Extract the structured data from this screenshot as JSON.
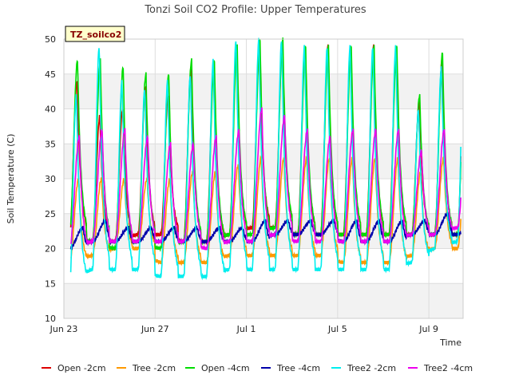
{
  "chart_data": {
    "type": "line",
    "title": "Tonzi Soil CO2 Profile: Upper Temperatures",
    "xlabel": "Time",
    "ylabel": "Soil Temperature (C)",
    "badge": "TZ_soilco2",
    "xlim": [
      0,
      17.5
    ],
    "ylim": [
      10,
      50
    ],
    "yticks": [
      10,
      15,
      20,
      25,
      30,
      35,
      40,
      45,
      50
    ],
    "xticks": [
      {
        "day": 0,
        "label": "Jun 23"
      },
      {
        "day": 4,
        "label": "Jun 27"
      },
      {
        "day": 8,
        "label": "Jul 1"
      },
      {
        "day": 12,
        "label": "Jul 5"
      },
      {
        "day": 16,
        "label": "Jul 9"
      }
    ],
    "x_range_days": [
      0.3,
      17.4
    ],
    "grid": true,
    "legend_position": "bottom",
    "series": [
      {
        "name": "Open -2cm",
        "color": "#dd0000",
        "peak_day": 0.58,
        "max": [
          44,
          39,
          40,
          43,
          42,
          46,
          47,
          49,
          49,
          49,
          49,
          49,
          49,
          49,
          49,
          41,
          47,
          48
        ],
        "min": [
          22,
          21,
          21,
          22,
          22,
          21,
          21,
          22,
          23,
          23,
          22,
          22,
          22,
          22,
          22,
          22,
          22,
          22
        ]
      },
      {
        "name": "Tree -2cm",
        "color": "#ff9900",
        "peak_day": 0.65,
        "max": [
          30,
          30,
          30,
          30,
          30,
          31,
          31,
          32,
          33,
          33,
          33,
          33,
          33,
          33,
          33,
          31,
          33,
          33
        ],
        "min": [
          18,
          19,
          20,
          20,
          18,
          18,
          18,
          19,
          19,
          19,
          19,
          19,
          18,
          18,
          18,
          19,
          20,
          20
        ]
      },
      {
        "name": "Open -4cm",
        "color": "#00dd00",
        "peak_day": 0.6,
        "max": [
          47,
          47,
          46,
          45,
          45,
          47,
          47,
          49,
          50,
          50,
          49,
          49,
          49,
          49,
          49,
          42,
          48,
          49
        ],
        "min": [
          22,
          21,
          20,
          21,
          20,
          21,
          21,
          22,
          22,
          23,
          22,
          22,
          22,
          22,
          22,
          22,
          22,
          22
        ]
      },
      {
        "name": "Tree -4cm",
        "color": "#0000aa",
        "peak_day": 0.85,
        "max": [
          23,
          24,
          23,
          23,
          23,
          23,
          23,
          23,
          24,
          24,
          24,
          24,
          24,
          24,
          24,
          24,
          25,
          24
        ],
        "min": [
          20,
          21,
          21,
          21,
          21,
          21,
          21,
          21,
          21,
          22,
          22,
          22,
          21,
          21,
          21,
          22,
          22,
          22
        ]
      },
      {
        "name": "Tree2 -2cm",
        "color": "#00eeee",
        "peak_day": 0.55,
        "max": [
          42,
          49,
          44,
          43,
          44,
          45,
          47,
          50,
          50,
          50,
          49,
          49,
          49,
          49,
          49,
          40,
          46,
          48
        ],
        "min": [
          15,
          17,
          17,
          17,
          16,
          16,
          16,
          17,
          17,
          17,
          17,
          17,
          17,
          17,
          17,
          18,
          20,
          21
        ]
      },
      {
        "name": "Tree2 -4cm",
        "color": "#ee00ee",
        "peak_day": 0.68,
        "max": [
          36,
          37,
          37,
          36,
          35,
          35,
          36,
          37,
          40,
          39,
          37,
          36,
          37,
          37,
          37,
          34,
          37,
          38
        ],
        "min": [
          20,
          21,
          21,
          21,
          21,
          21,
          20,
          21,
          21,
          22,
          21,
          21,
          21,
          21,
          21,
          22,
          22,
          23
        ]
      }
    ]
  }
}
